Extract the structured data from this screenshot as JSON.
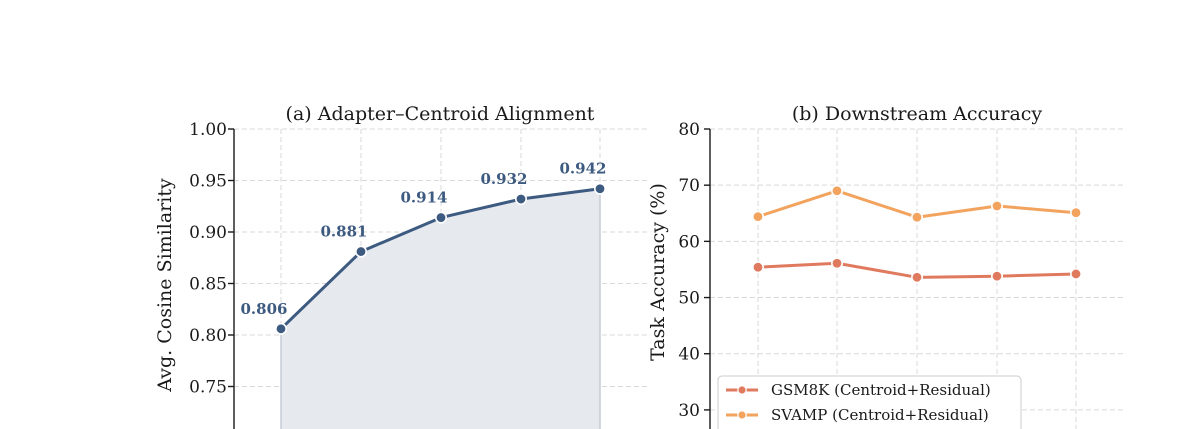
{
  "chart_data": [
    {
      "type": "area",
      "title": "(a) Adapter–Centroid Alignment",
      "xlabel": "",
      "ylabel": "Avg. Cosine Similarity",
      "ylim": [
        0.7,
        1.0
      ],
      "yticks": [
        "0.75",
        "0.80",
        "0.85",
        "0.90",
        "0.95",
        "1.00"
      ],
      "grid": true,
      "series": [
        {
          "values": [
            0.806,
            0.881,
            0.914,
            0.932,
            0.942
          ],
          "labels": [
            "0.806",
            "0.881",
            "0.914",
            "0.932",
            "0.942"
          ],
          "color": "#3d5a80",
          "fill": "#e6e9ee"
        }
      ]
    },
    {
      "type": "line",
      "title": "(b) Downstream Accuracy",
      "xlabel": "",
      "ylabel": "Task Accuracy (%)",
      "ylim": [
        25,
        80
      ],
      "yticks": [
        "30",
        "40",
        "50",
        "60",
        "70",
        "80"
      ],
      "grid": true,
      "legend_position": "lower-left",
      "series": [
        {
          "name": "GSM8K (Centroid+Residual)",
          "values": [
            55.4,
            56.1,
            53.6,
            53.8,
            54.2
          ],
          "color": "#e07a5f"
        },
        {
          "name": "SVAMP (Centroid+Residual)",
          "values": [
            64.4,
            69.0,
            64.3,
            66.3,
            65.1
          ],
          "color": "#f2a35e"
        }
      ]
    }
  ]
}
